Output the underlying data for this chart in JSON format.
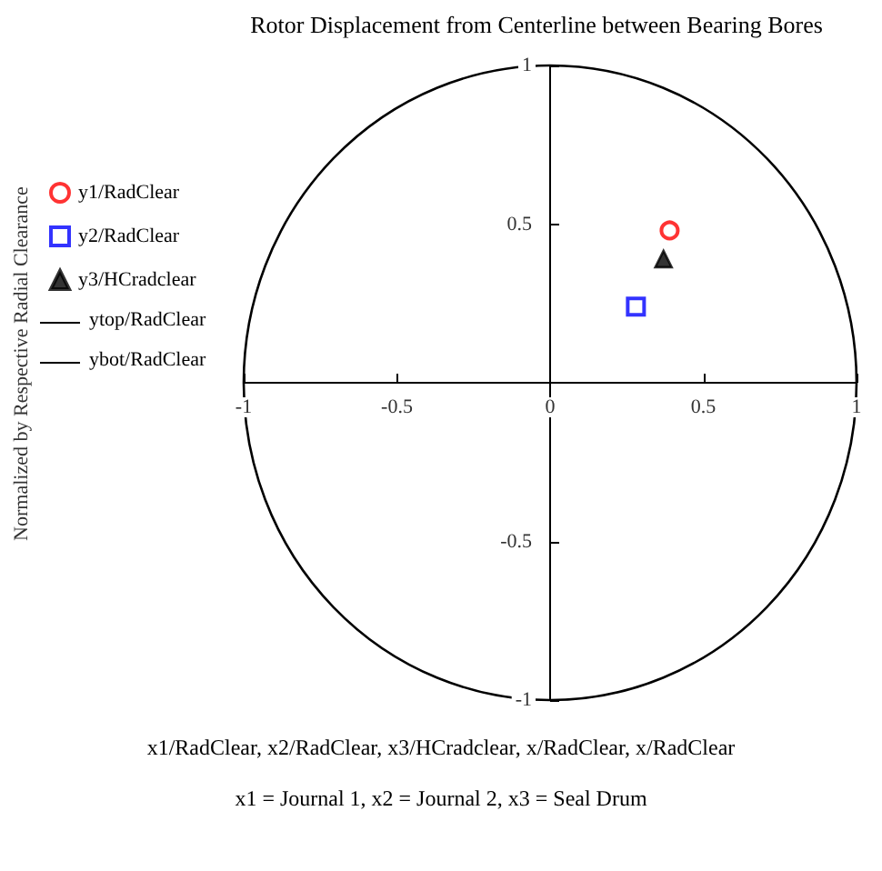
{
  "chart_data": {
    "type": "scatter",
    "title": "Rotor Displacement from Centerline between Bearing Bores",
    "xlabel": "x1/RadClear, x2/RadClear, x3/HCradclear, x/RadClear, x/RadClear",
    "annotations": [
      "Normalized by Respective Radial Clearance",
      "ytop/RadClear",
      "ybot/RadClear",
      "x1 = Journal 1, x2 = Journal 2, x3 = Seal Drum"
    ],
    "series": [
      {
        "name": "y1/RadClear",
        "color": "#ff0000",
        "marker": "circle",
        "x": [
          0.39
        ],
        "values": [
          0.48
        ]
      },
      {
        "name": "y2/RadClear",
        "color": "#0000ff",
        "marker": "square",
        "x": [
          0.28
        ],
        "values": [
          0.24
        ]
      },
      {
        "name": "y3/HCradclear",
        "color": "#000000",
        "marker": "triangle",
        "x": [
          0.37
        ],
        "values": [
          0.39
        ]
      }
    ],
    "xlim": [
      -1,
      1
    ],
    "ylim": [
      -1,
      1
    ],
    "xticks": [
      -1,
      -0.5,
      0,
      0.5,
      1
    ],
    "yticks": [
      -1,
      -0.5,
      0.5,
      1
    ],
    "legend": "left"
  }
}
